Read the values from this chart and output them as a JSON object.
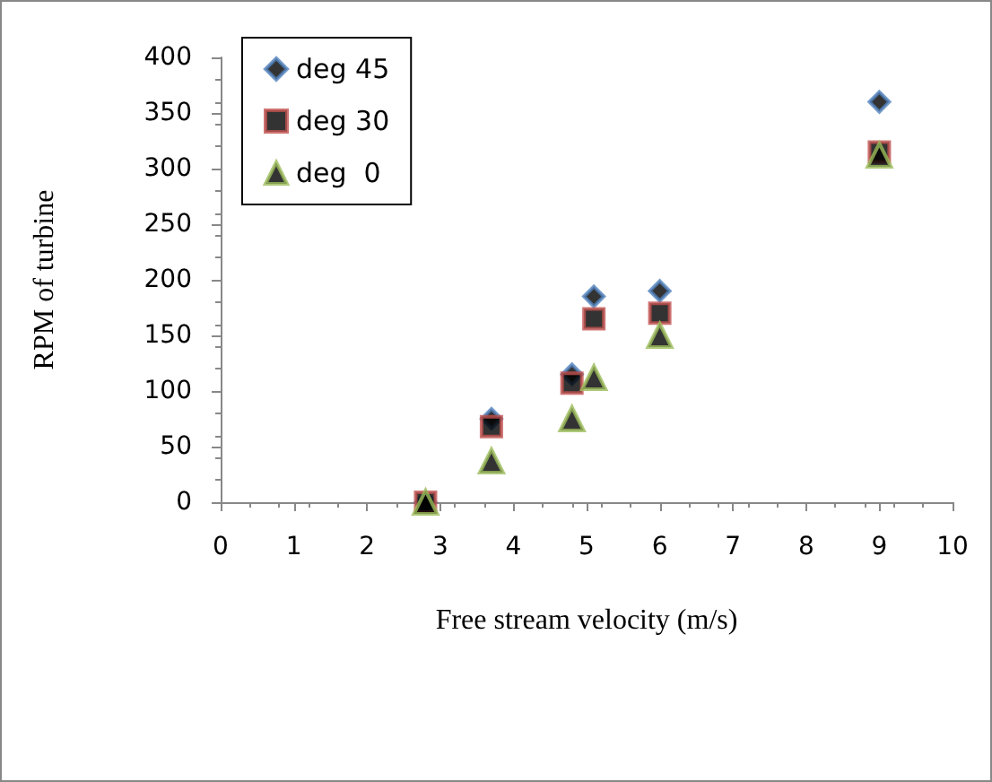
{
  "chart_data": {
    "type": "scatter",
    "xlabel": "Free stream velocity (m/s)",
    "ylabel": "RPM of turbine",
    "x": [
      2.8,
      3.7,
      4.8,
      5.1,
      6,
      9
    ],
    "series": [
      {
        "name": "deg 45",
        "color": "#4f81bd",
        "marker": "diamond",
        "values": [
          0,
          75,
          115,
          185,
          190,
          360
        ]
      },
      {
        "name": "deg 30",
        "color": "#c0504d",
        "marker": "square",
        "values": [
          0,
          68,
          107,
          165,
          170,
          315
        ]
      },
      {
        "name": "deg  0",
        "color": "#9bbb59",
        "marker": "triangle",
        "values": [
          0,
          37,
          75,
          112,
          150,
          312
        ]
      }
    ],
    "xlim": [
      0,
      10
    ],
    "xticks": [
      0,
      1,
      2,
      3,
      4,
      5,
      6,
      7,
      8,
      9,
      10
    ],
    "ylim": [
      0,
      400
    ],
    "yticks": [
      0,
      50,
      100,
      150,
      200,
      250,
      300,
      350,
      400
    ],
    "grid": false,
    "legend": "top left"
  }
}
